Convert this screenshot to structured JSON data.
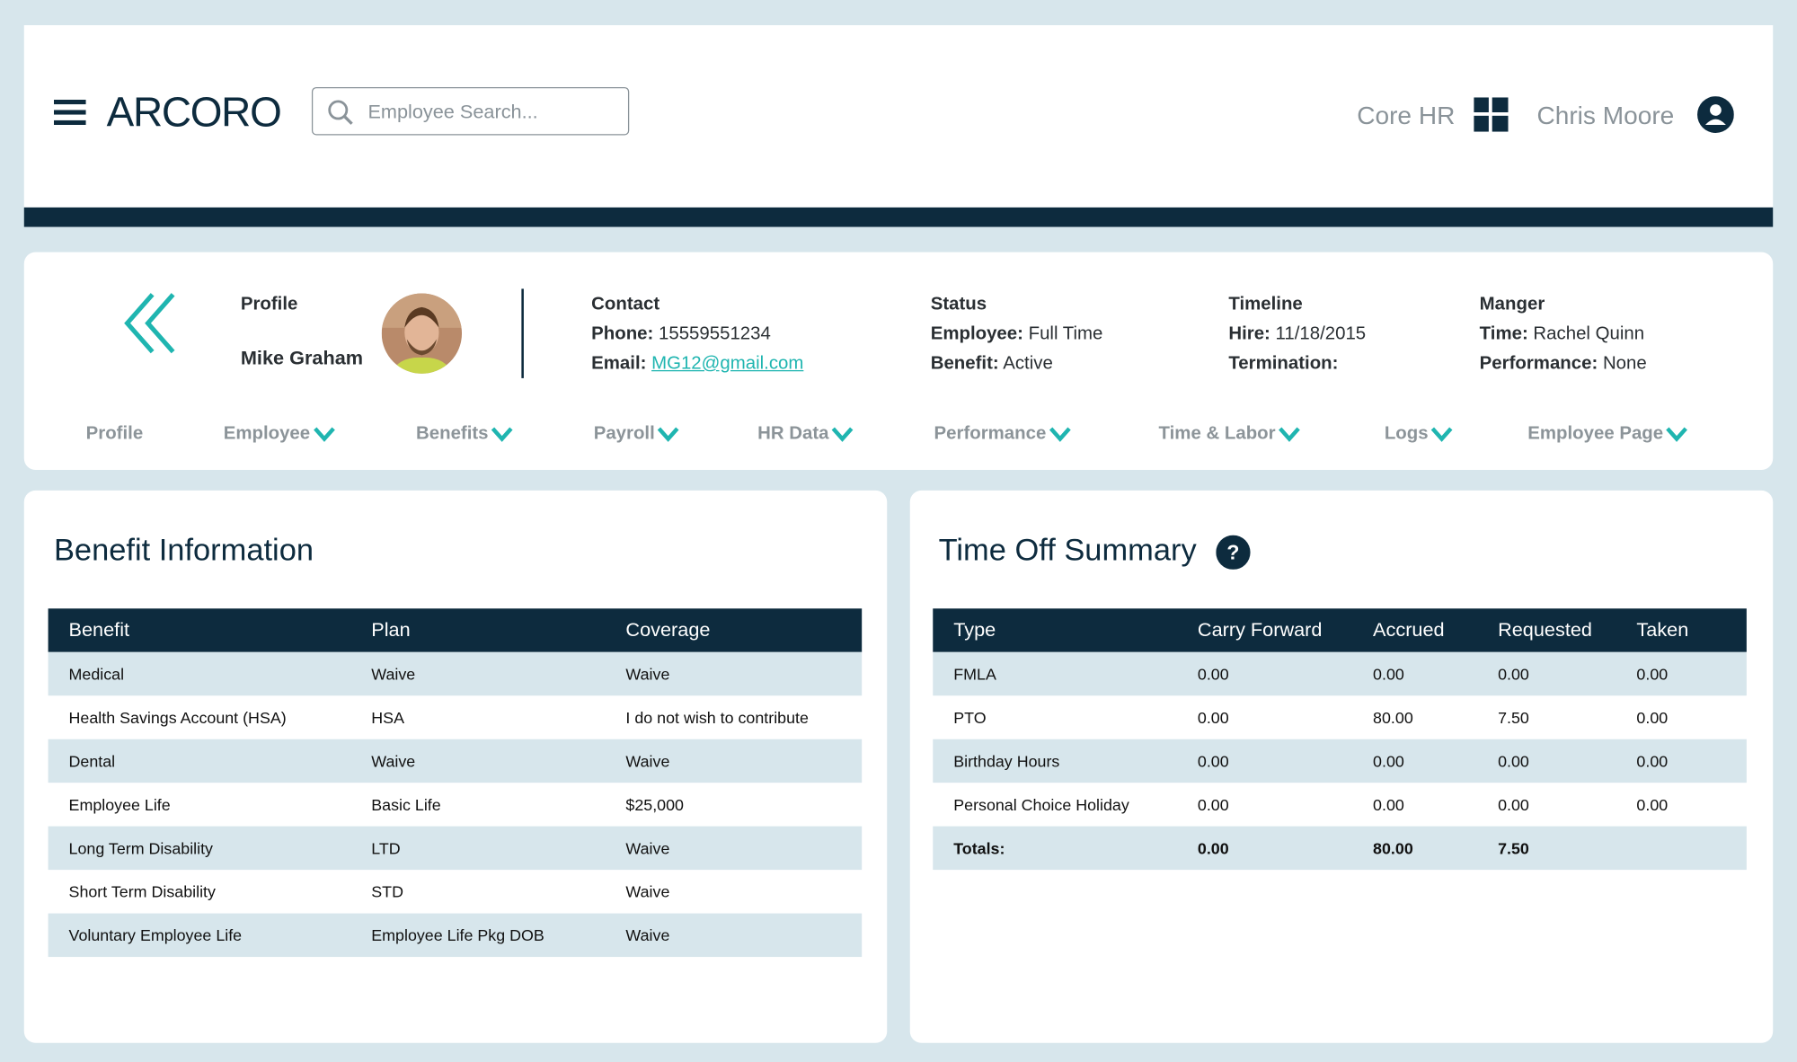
{
  "header": {
    "logo": "ARCORO",
    "search_placeholder": "Employee Search...",
    "module": "Core HR",
    "user": "Chris Moore"
  },
  "profile": {
    "label": "Profile",
    "name": "Mike Graham",
    "contact": {
      "title": "Contact",
      "phone_label": "Phone:",
      "phone": "15559551234",
      "email_label": "Email:",
      "email": "MG12@gmail.com"
    },
    "status": {
      "title": "Status",
      "employee_label": "Employee:",
      "employee": "Full Time",
      "benefit_label": "Benefit:",
      "benefit": "Active"
    },
    "timeline": {
      "title": "Timeline",
      "hire_label": "Hire:",
      "hire": "11/18/2015",
      "termination_label": "Termination:"
    },
    "manager": {
      "title": "Manger",
      "time_label": "Time:",
      "time": "Rachel Quinn",
      "performance_label": "Performance:",
      "performance": "None"
    }
  },
  "tabs": [
    "Profile",
    "Employee",
    "Benefits",
    "Payroll",
    "HR Data",
    "Performance",
    "Time & Labor",
    "Logs",
    "Employee Page"
  ],
  "benefits": {
    "title": "Benefit Information",
    "columns": [
      "Benefit",
      "Plan",
      "Coverage"
    ],
    "rows": [
      [
        "Medical",
        "Waive",
        "Waive"
      ],
      [
        "Health Savings Account (HSA)",
        "HSA",
        "I do not wish to contribute"
      ],
      [
        "Dental",
        "Waive",
        "Waive"
      ],
      [
        "Employee Life",
        "Basic Life",
        "$25,000"
      ],
      [
        "Long Term Disability",
        "LTD",
        "Waive"
      ],
      [
        "Short Term Disability",
        "STD",
        "Waive"
      ],
      [
        "Voluntary Employee Life",
        "Employee Life Pkg DOB",
        "Waive"
      ]
    ]
  },
  "time_off": {
    "title": "Time Off Summary",
    "columns": [
      "Type",
      "Carry Forward",
      "Accrued",
      "Requested",
      "Taken"
    ],
    "rows": [
      [
        "FMLA",
        "0.00",
        "0.00",
        "0.00",
        "0.00"
      ],
      [
        "PTO",
        "0.00",
        "80.00",
        "7.50",
        "0.00"
      ],
      [
        "Birthday Hours",
        "0.00",
        "0.00",
        "0.00",
        "0.00"
      ],
      [
        "Personal Choice Holiday",
        "0.00",
        "0.00",
        "0.00",
        "0.00"
      ]
    ],
    "totals": [
      "Totals:",
      "0.00",
      "80.00",
      "7.50"
    ]
  }
}
